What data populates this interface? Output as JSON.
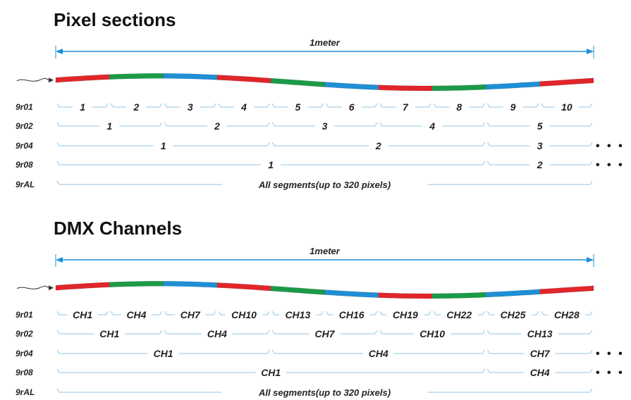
{
  "sections": [
    {
      "id": "pixel",
      "title": "Pixel sections",
      "length_label": "1meter",
      "strip_colors": [
        "#e0262b",
        "#1b9a47",
        "#1f8fd6",
        "#e0262b",
        "#1b9a47",
        "#1f8fd6",
        "#e0262b",
        "#1b9a47",
        "#1f8fd6",
        "#e0262b"
      ],
      "rows": [
        {
          "label": "9r01",
          "items": [
            "1",
            "2",
            "3",
            "4",
            "5",
            "6",
            "7",
            "8",
            "9",
            "10"
          ],
          "more": ""
        },
        {
          "label": "9r02",
          "items": [
            "1",
            "2",
            "3",
            "4",
            "5"
          ],
          "more": ""
        },
        {
          "label": "9r04",
          "items": [
            "1",
            "2",
            "3"
          ],
          "more": "• • •"
        },
        {
          "label": "9r08",
          "items": [
            "1",
            "2"
          ],
          "more": "• • •"
        },
        {
          "label": "9rAL",
          "items": [
            "All segments(up to 320 pixels)"
          ],
          "more": ""
        }
      ]
    },
    {
      "id": "dmx",
      "title": "DMX Channels",
      "length_label": "1meter",
      "strip_colors": [
        "#e0262b",
        "#1b9a47",
        "#1f8fd6",
        "#e0262b",
        "#1b9a47",
        "#1f8fd6",
        "#e0262b",
        "#1b9a47",
        "#1f8fd6",
        "#e0262b"
      ],
      "rows": [
        {
          "label": "9r01",
          "items": [
            "CH1",
            "CH4",
            "CH7",
            "CH10",
            "CH13",
            "CH16",
            "CH19",
            "CH22",
            "CH25",
            "CH28"
          ],
          "more": ""
        },
        {
          "label": "9r02",
          "items": [
            "CH1",
            "CH4",
            "CH7",
            "CH10",
            "CH13"
          ],
          "more": ""
        },
        {
          "label": "9r04",
          "items": [
            "CH1",
            "CH4",
            "CH7"
          ],
          "more": "• • •"
        },
        {
          "label": "9r08",
          "items": [
            "CH1",
            "CH4"
          ],
          "more": "• • •"
        },
        {
          "label": "9rAL",
          "items": [
            "All segments(up to 320 pixels)"
          ],
          "more": ""
        }
      ]
    }
  ],
  "colors": {
    "dimension_line": "#1a8fd8",
    "bracket_line": "#8fc6ea",
    "text": "#222222"
  }
}
